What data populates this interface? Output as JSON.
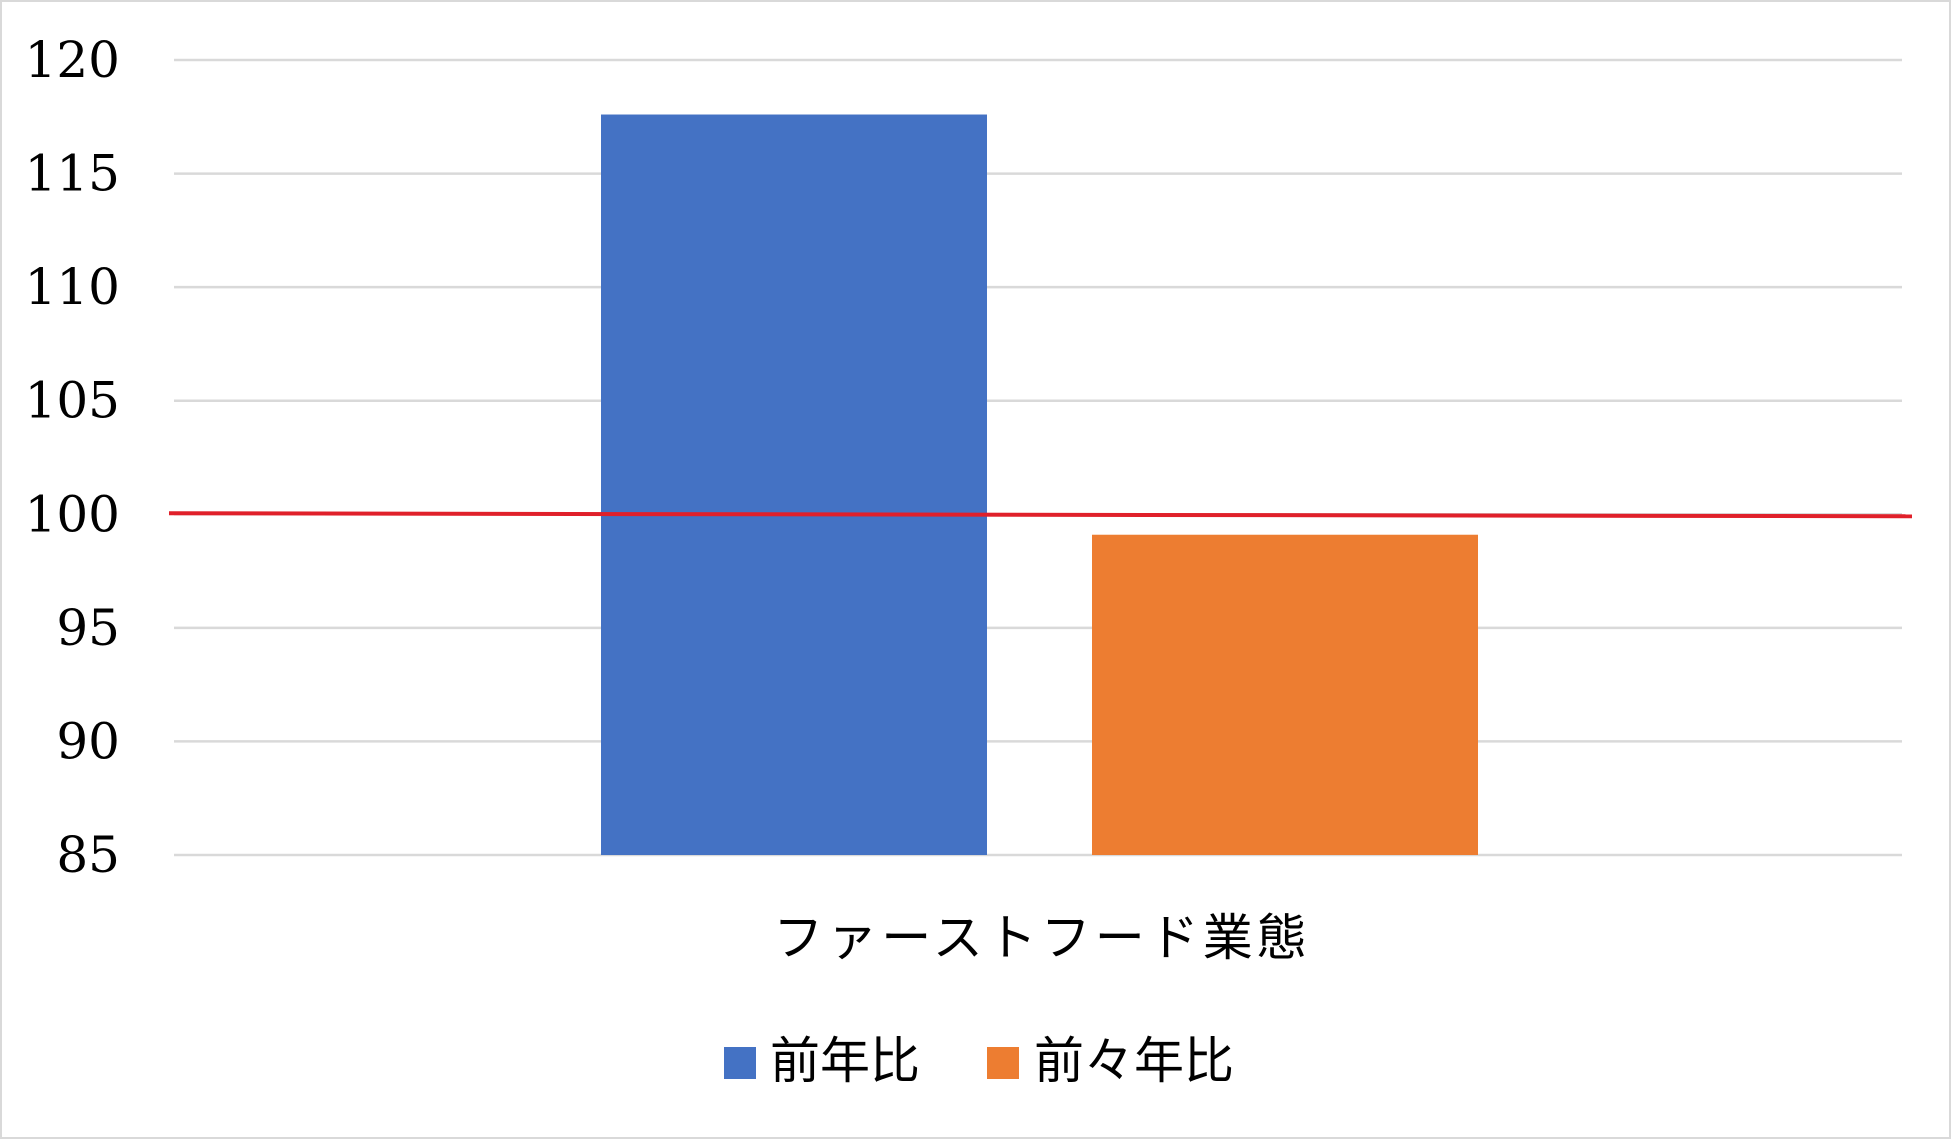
{
  "chart_data": {
    "type": "bar",
    "categories": [
      "ファーストフード業態"
    ],
    "series": [
      {
        "name": "前年比",
        "values": [
          117.6
        ],
        "color": "#4472C4"
      },
      {
        "name": "前々年比",
        "values": [
          99.1
        ],
        "color": "#ED7D31"
      }
    ],
    "ylim": [
      85,
      120
    ],
    "yticks": [
      85,
      90,
      95,
      100,
      105,
      110,
      115,
      120
    ],
    "reference_line": {
      "value": 100,
      "color": "#E0202A"
    },
    "grid": true,
    "legend_position": "bottom",
    "gridline_color": "#D9D9D9"
  }
}
